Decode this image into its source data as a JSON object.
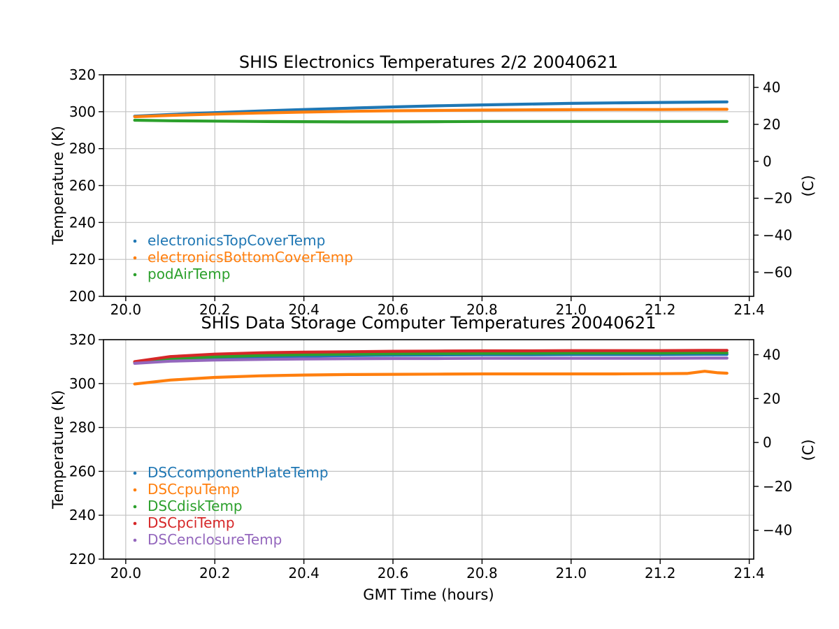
{
  "figure": {
    "background": "#ffffff"
  },
  "colors": {
    "grid": "#c3c3c3",
    "spine": "#000000",
    "text": "#000000"
  },
  "chart_data": [
    {
      "type": "line",
      "title": "SHIS Electronics Temperatures 2/2 20040621",
      "xlabel": "",
      "ylabel_left": "Temperature (K)",
      "ylabel_right": "(C)",
      "xlim": [
        19.95,
        21.41
      ],
      "ylim_k": [
        200,
        320
      ],
      "celsius_offset": 273.15,
      "xticks": [
        20.0,
        20.2,
        20.4,
        20.6,
        20.8,
        21.0,
        21.2,
        21.4
      ],
      "yticks_k": [
        200,
        220,
        240,
        260,
        280,
        300,
        320
      ],
      "yticks_c": [
        -60,
        -40,
        -20,
        0,
        20,
        40
      ],
      "grid": true,
      "legend_position": "lower left",
      "series": [
        {
          "name": "electronicsTopCoverTemp",
          "color": "#1f77b4",
          "x": [
            20.02,
            20.1,
            20.2,
            20.3,
            20.4,
            20.5,
            20.6,
            20.7,
            20.8,
            20.9,
            21.0,
            21.1,
            21.2,
            21.3,
            21.35
          ],
          "y": [
            297.6,
            298.5,
            299.5,
            300.4,
            301.2,
            301.9,
            302.6,
            303.2,
            303.7,
            304.1,
            304.5,
            304.8,
            305.0,
            305.2,
            305.3
          ]
        },
        {
          "name": "electronicsBottomCoverTemp",
          "color": "#ff7f0e",
          "x": [
            20.02,
            20.1,
            20.2,
            20.3,
            20.4,
            20.5,
            20.6,
            20.7,
            20.8,
            20.9,
            21.0,
            21.1,
            21.2,
            21.3,
            21.35
          ],
          "y": [
            297.3,
            298.0,
            298.7,
            299.3,
            299.8,
            300.2,
            300.5,
            300.7,
            300.9,
            301.0,
            301.1,
            301.2,
            301.2,
            301.3,
            301.3
          ]
        },
        {
          "name": "podAirTemp",
          "color": "#2ca02c",
          "x": [
            20.02,
            20.1,
            20.2,
            20.3,
            20.4,
            20.5,
            20.6,
            20.7,
            20.8,
            20.9,
            21.0,
            21.1,
            21.2,
            21.3,
            21.35
          ],
          "y": [
            295.4,
            295.1,
            294.9,
            294.7,
            294.6,
            294.5,
            294.5,
            294.6,
            294.7,
            294.7,
            294.7,
            294.7,
            294.7,
            294.7,
            294.7
          ]
        }
      ]
    },
    {
      "type": "line",
      "title": "SHIS Data Storage Computer Temperatures 20040621",
      "xlabel": "GMT Time (hours)",
      "ylabel_left": "Temperature (K)",
      "ylabel_right": "(C)",
      "xlim": [
        19.95,
        21.41
      ],
      "ylim_k": [
        220,
        320
      ],
      "celsius_offset": 273.15,
      "xticks": [
        20.0,
        20.2,
        20.4,
        20.6,
        20.8,
        21.0,
        21.2,
        21.4
      ],
      "yticks_k": [
        220,
        240,
        260,
        280,
        300,
        320
      ],
      "yticks_c": [
        -40,
        -20,
        0,
        20,
        40
      ],
      "grid": true,
      "legend_position": "lower left",
      "series": [
        {
          "name": "DSCcomponentPlateTemp",
          "color": "#1f77b4",
          "x": [
            20.02,
            20.1,
            20.2,
            20.3,
            20.4,
            20.5,
            20.6,
            20.7,
            20.8,
            20.9,
            21.0,
            21.1,
            21.2,
            21.3,
            21.35
          ],
          "y": [
            309.5,
            310.8,
            311.6,
            312.1,
            312.5,
            312.7,
            312.9,
            313.0,
            313.1,
            313.1,
            313.2,
            313.2,
            313.2,
            313.3,
            313.3
          ]
        },
        {
          "name": "DSCcpuTemp",
          "color": "#ff7f0e",
          "x": [
            20.02,
            20.1,
            20.2,
            20.3,
            20.4,
            20.5,
            20.6,
            20.7,
            20.8,
            20.9,
            21.0,
            21.1,
            21.2,
            21.26,
            21.3,
            21.33,
            21.35
          ],
          "y": [
            299.8,
            301.6,
            302.8,
            303.5,
            303.9,
            304.1,
            304.2,
            304.3,
            304.4,
            304.4,
            304.4,
            304.4,
            304.5,
            304.6,
            305.6,
            304.9,
            304.7
          ]
        },
        {
          "name": "DSCdiskTemp",
          "color": "#2ca02c",
          "x": [
            20.02,
            20.1,
            20.2,
            20.3,
            20.4,
            20.5,
            20.6,
            20.7,
            20.8,
            20.9,
            21.0,
            21.1,
            21.2,
            21.3,
            21.35
          ],
          "y": [
            309.7,
            311.3,
            312.2,
            312.8,
            313.2,
            313.4,
            313.6,
            313.7,
            313.8,
            313.8,
            313.9,
            313.9,
            313.9,
            314.0,
            314.0
          ]
        },
        {
          "name": "DSCpciTemp",
          "color": "#d62728",
          "x": [
            20.02,
            20.1,
            20.2,
            20.3,
            20.4,
            20.5,
            20.6,
            20.7,
            20.8,
            20.9,
            21.0,
            21.1,
            21.2,
            21.3,
            21.35
          ],
          "y": [
            310.0,
            312.3,
            313.4,
            314.0,
            314.3,
            314.5,
            314.7,
            314.8,
            314.9,
            314.9,
            315.0,
            315.0,
            315.0,
            315.1,
            315.1
          ]
        },
        {
          "name": "DSCenclosureTemp",
          "color": "#9467bd",
          "x": [
            20.02,
            20.1,
            20.2,
            20.3,
            20.4,
            20.5,
            20.6,
            20.7,
            20.8,
            20.9,
            21.0,
            21.1,
            21.2,
            21.3,
            21.35
          ],
          "y": [
            309.2,
            310.2,
            310.7,
            311.0,
            311.2,
            311.3,
            311.4,
            311.4,
            311.5,
            311.5,
            311.5,
            311.5,
            311.5,
            311.6,
            311.6
          ]
        }
      ]
    }
  ]
}
